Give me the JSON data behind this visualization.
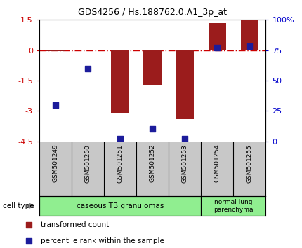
{
  "title": "GDS4256 / Hs.188762.0.A1_3p_at",
  "samples": [
    "GSM501249",
    "GSM501250",
    "GSM501251",
    "GSM501252",
    "GSM501253",
    "GSM501254",
    "GSM501255"
  ],
  "transformed_counts": [
    -0.05,
    -0.02,
    -3.1,
    -1.7,
    -3.4,
    1.35,
    1.48
  ],
  "percentile_ranks": [
    30,
    60,
    2,
    10,
    2,
    77,
    78
  ],
  "ylim_left": [
    -4.5,
    1.5
  ],
  "ylim_right": [
    0,
    100
  ],
  "yticks_left": [
    1.5,
    0,
    -1.5,
    -3,
    -4.5
  ],
  "yticks_right": [
    0,
    25,
    50,
    75,
    100
  ],
  "hline_y": 0,
  "dotted_lines": [
    -1.5,
    -3.0
  ],
  "bar_color": "#9B1C1C",
  "dot_color": "#1C1C9B",
  "hline_color": "#CC0000",
  "group1_label": "caseous TB granulomas",
  "group1_samples": 5,
  "group2_label": "normal lung\nparenchyma",
  "group2_samples": 2,
  "group_color": "#90EE90",
  "cell_type_label": "cell type",
  "legend_red_label": "transformed count",
  "legend_blue_label": "percentile rank within the sample",
  "background_color": "#ffffff",
  "left_axis_color": "#CC0000",
  "right_axis_color": "#0000CC",
  "bar_width": 0.55,
  "sample_box_color": "#C8C8C8",
  "arrow_color": "#808080"
}
